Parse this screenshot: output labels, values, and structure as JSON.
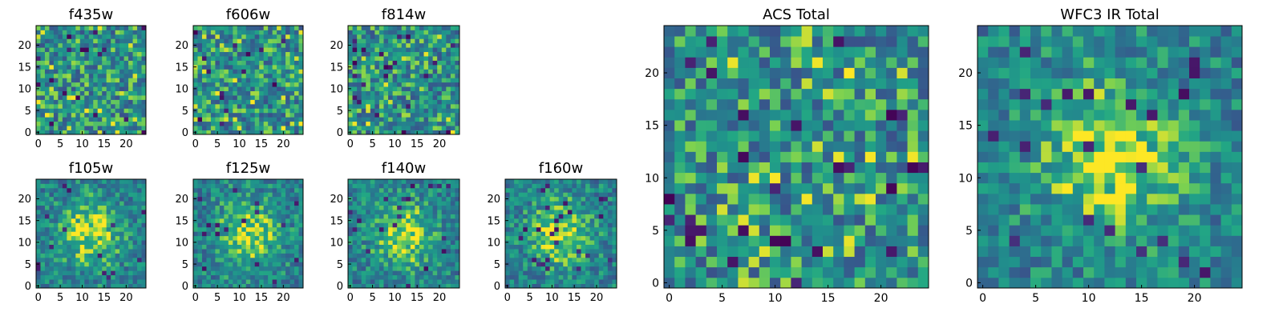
{
  "colormap": "viridis",
  "chart_data": [
    {
      "type": "heatmap",
      "title": "f435w",
      "grid_size": 25,
      "texture": "noise",
      "xticks": [
        "0",
        "5",
        "10",
        "15",
        "20"
      ],
      "yticks": [
        "0",
        "5",
        "10",
        "15",
        "20"
      ]
    },
    {
      "type": "heatmap",
      "title": "f606w",
      "grid_size": 25,
      "texture": "noise",
      "xticks": [
        "0",
        "5",
        "10",
        "15",
        "20"
      ],
      "yticks": [
        "0",
        "5",
        "10",
        "15",
        "20"
      ]
    },
    {
      "type": "heatmap",
      "title": "f814w",
      "grid_size": 25,
      "texture": "noise",
      "xticks": [
        "0",
        "5",
        "10",
        "15",
        "20"
      ],
      "yticks": [
        "0",
        "5",
        "10",
        "15",
        "20"
      ]
    },
    {
      "type": "heatmap",
      "title": "f105w",
      "grid_size": 25,
      "texture": "central-source",
      "xticks": [
        "0",
        "5",
        "10",
        "15",
        "20"
      ],
      "yticks": [
        "0",
        "5",
        "10",
        "15",
        "20"
      ]
    },
    {
      "type": "heatmap",
      "title": "f125w",
      "grid_size": 25,
      "texture": "central-source",
      "xticks": [
        "0",
        "5",
        "10",
        "15",
        "20"
      ],
      "yticks": [
        "0",
        "5",
        "10",
        "15",
        "20"
      ]
    },
    {
      "type": "heatmap",
      "title": "f140w",
      "grid_size": 25,
      "texture": "central-source",
      "xticks": [
        "0",
        "5",
        "10",
        "15",
        "20"
      ],
      "yticks": [
        "0",
        "5",
        "10",
        "15",
        "20"
      ]
    },
    {
      "type": "heatmap",
      "title": "f160w",
      "grid_size": 25,
      "texture": "central-source",
      "xticks": [
        "0",
        "5",
        "10",
        "15",
        "20"
      ],
      "yticks": [
        "0",
        "5",
        "10",
        "15",
        "20"
      ]
    },
    {
      "type": "heatmap",
      "title": "ACS Total",
      "grid_size": 25,
      "texture": "noise",
      "xticks": [
        "0",
        "5",
        "10",
        "15",
        "20"
      ],
      "yticks": [
        "0",
        "5",
        "10",
        "15",
        "20"
      ]
    },
    {
      "type": "heatmap",
      "title": "WFC3 IR Total",
      "grid_size": 25,
      "texture": "central-source",
      "xticks": [
        "0",
        "5",
        "10",
        "15",
        "20"
      ],
      "yticks": [
        "0",
        "5",
        "10",
        "15",
        "20"
      ]
    }
  ]
}
